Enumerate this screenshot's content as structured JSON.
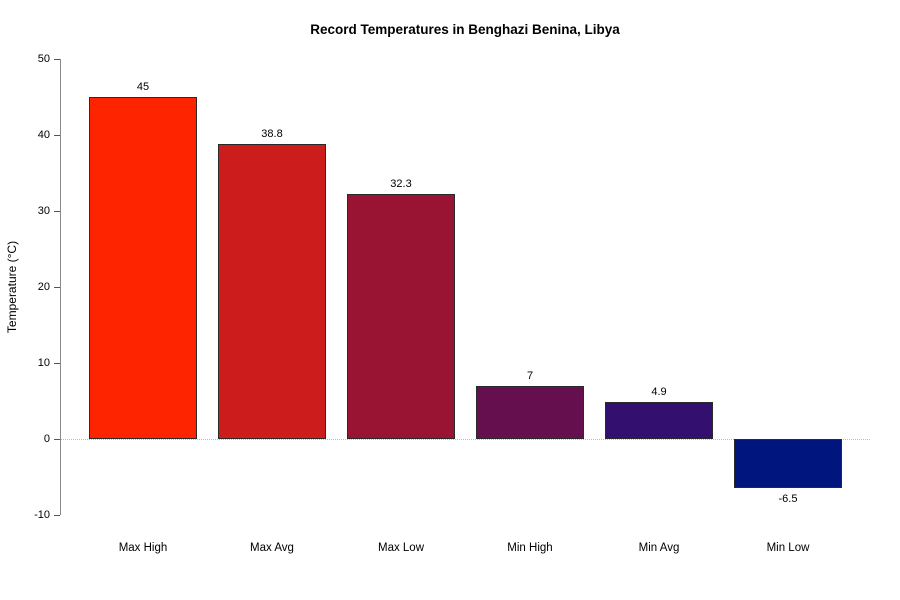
{
  "chart_data": {
    "type": "bar",
    "title": "Record Temperatures in Benghazi Benina, Libya",
    "ylabel": "Temperature (°C)",
    "xlabel": "",
    "categories": [
      "Max High",
      "Max Avg",
      "Max Low",
      "Min High",
      "Min Avg",
      "Min Low"
    ],
    "values": [
      45,
      38.8,
      32.3,
      7,
      4.9,
      -6.5
    ],
    "value_labels": [
      "45",
      "38.8",
      "32.3",
      "7",
      "4.9",
      "-6.5"
    ],
    "bar_colors": [
      "#fe2400",
      "#cc1c1b",
      "#991432",
      "#650f4e",
      "#331070",
      "#01157e"
    ],
    "ylim": [
      -10,
      50
    ],
    "yticks": [
      50,
      40,
      30,
      20,
      10,
      0,
      -10
    ],
    "grid": false,
    "legend": null,
    "zero_line": true,
    "colors": {
      "background": "#ffffff",
      "text": "#000000",
      "axis": "#8a8a8a",
      "tick": "#555555",
      "bar_edge": "#2a2a2a",
      "zero_line": "#bdbdbd"
    }
  }
}
